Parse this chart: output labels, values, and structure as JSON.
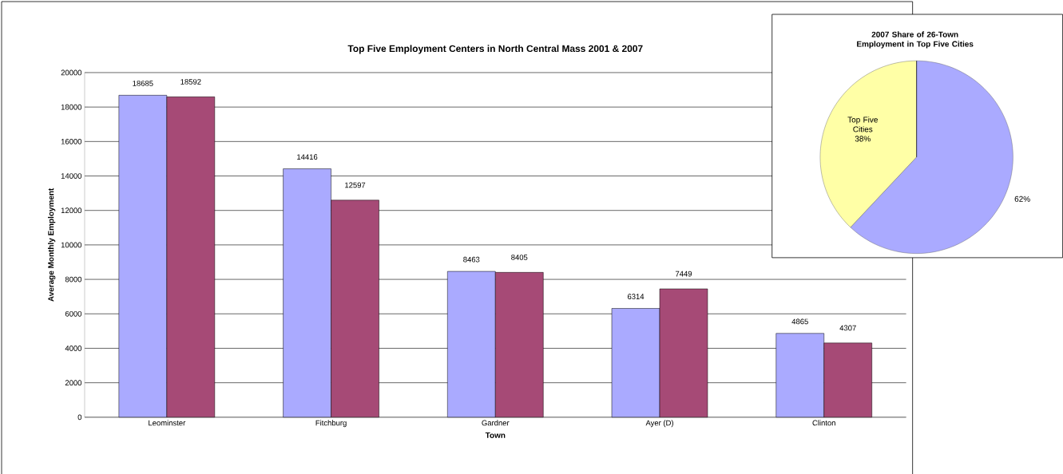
{
  "chart_data": [
    {
      "type": "bar",
      "title": "Top Five Employment Centers in North Central Mass 2001 & 2007",
      "xlabel": "Town",
      "ylabel": "Average Monthly Employment",
      "categories": [
        "Leominster",
        "Fitchburg",
        "Gardner",
        "Ayer (D)",
        "Clinton"
      ],
      "series": [
        {
          "color": "#aaaaff",
          "values": [
            18685,
            14416,
            8463,
            6314,
            4865
          ]
        },
        {
          "color": "#a64a76",
          "values": [
            18592,
            12597,
            8405,
            7449,
            4307
          ]
        }
      ],
      "ylim": [
        0,
        20000
      ],
      "yticks": [
        0,
        2000,
        4000,
        6000,
        8000,
        10000,
        12000,
        14000,
        16000,
        18000,
        20000
      ],
      "grid": "y",
      "data_labels": true
    },
    {
      "type": "pie",
      "title": "2007 Share of 26-Town Employment in Top Five Cities",
      "categories": [
        "Top Five Cities",
        null
      ],
      "values": [
        38,
        62
      ],
      "colors": [
        "#ffffa6",
        "#aaaaff"
      ],
      "value_labels": [
        "38%",
        "62%"
      ]
    }
  ]
}
